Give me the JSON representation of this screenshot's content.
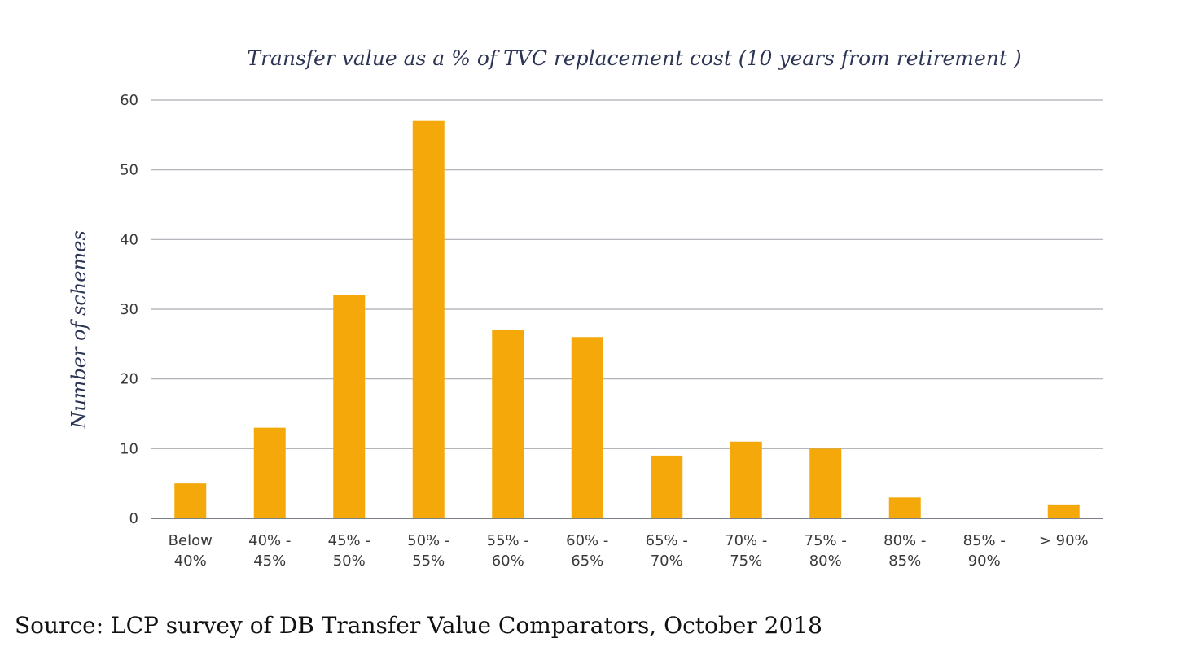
{
  "chart_data": {
    "type": "bar",
    "title": "Transfer value as a % of TVC replacement cost (10 years from retirement )",
    "xlabel": "",
    "ylabel": "Number of schemes",
    "ylim": [
      0,
      60
    ],
    "yticks": [
      0,
      10,
      20,
      30,
      40,
      50,
      60
    ],
    "grid": true,
    "bar_color": "#f5a80a",
    "categories": [
      [
        "Below",
        "40%"
      ],
      [
        "40% -",
        "45%"
      ],
      [
        "45% -",
        "50%"
      ],
      [
        "50% -",
        "55%"
      ],
      [
        "55% -",
        "60%"
      ],
      [
        "60% -",
        "65%"
      ],
      [
        "65% -",
        "70%"
      ],
      [
        "70% -",
        "75%"
      ],
      [
        "75% -",
        "80%"
      ],
      [
        "80% -",
        "85%"
      ],
      [
        "85% -",
        "90%"
      ],
      [
        "> 90%"
      ]
    ],
    "values": [
      5,
      13,
      32,
      57,
      27,
      26,
      9,
      11,
      10,
      3,
      0,
      2
    ]
  },
  "source": "Source: LCP survey of DB Transfer Value Comparators, October 2018"
}
